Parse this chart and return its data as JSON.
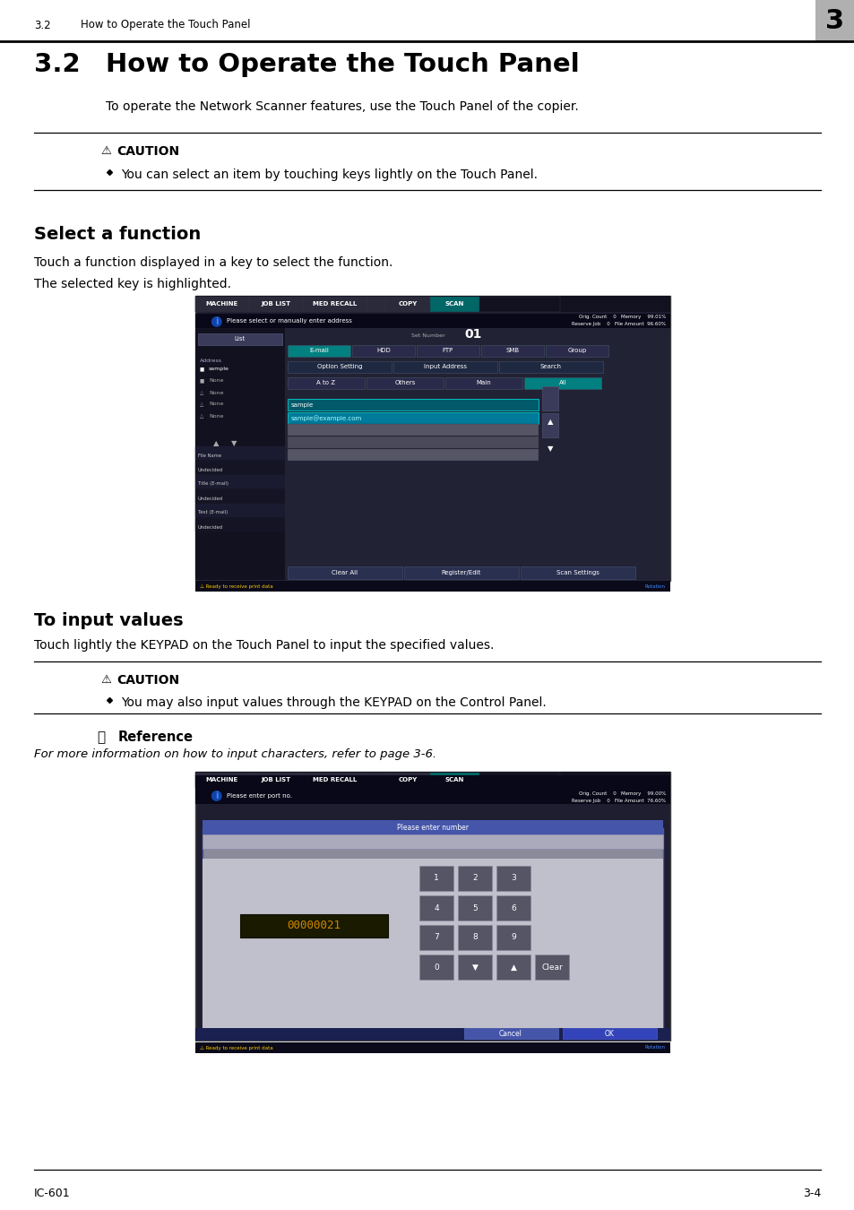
{
  "page_bg": "#ffffff",
  "header_section_number": "3.2",
  "header_section_title": "How to Operate the Touch Panel",
  "header_chapter_num": "3",
  "header_chapter_bg": "#b0b0b0",
  "main_title_number": "3.2",
  "main_title": "How to Operate the Touch Panel",
  "intro_text": "To operate the Network Scanner features, use the Touch Panel of the copier.",
  "caution_title": "CAUTION",
  "caution_bullet": "You can select an item by touching keys lightly on the Touch Panel.",
  "section1_title": "Select a function",
  "section1_text1": "Touch a function displayed in a key to select the function.",
  "section1_text2": "The selected key is highlighted.",
  "section2_title": "To input values",
  "section2_text1": "Touch lightly the KEYPAD on the Touch Panel to input the specified values.",
  "caution2_title": "CAUTION",
  "caution2_bullet": "You may also input values through the KEYPAD on the Control Panel.",
  "reference_title": "Reference",
  "reference_text": "For more information on how to input characters, refer to page 3-6.",
  "footer_left": "IC-601",
  "footer_right": "3-4"
}
